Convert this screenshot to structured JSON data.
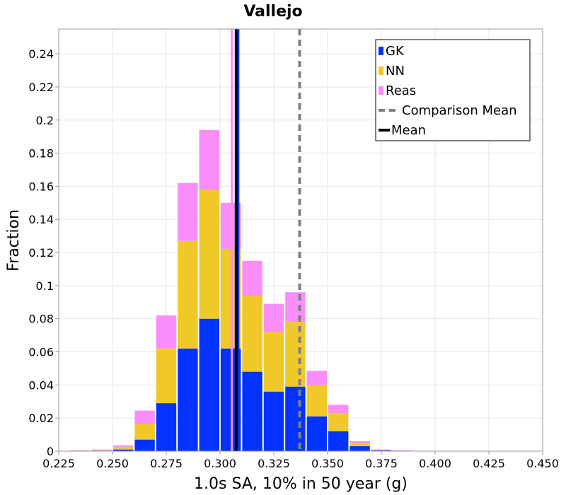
{
  "chart_data": {
    "type": "bar",
    "stacked": true,
    "title": "Vallejo",
    "xlabel": "1.0s SA, 10% in 50 year (g)",
    "ylabel": "Fraction",
    "xlim": [
      0.225,
      0.45
    ],
    "ylim": [
      0,
      0.255
    ],
    "grid": true,
    "legend_position": "top-right",
    "bin_width": 0.01,
    "x_ticks": [
      0.225,
      0.25,
      0.275,
      0.3,
      0.325,
      0.35,
      0.375,
      0.4,
      0.425,
      0.45
    ],
    "x_tick_labels": [
      "0.225",
      "0.250",
      "0.275",
      "0.300",
      "0.325",
      "0.350",
      "0.375",
      "0.400",
      "0.425",
      "0.450"
    ],
    "y_ticks": [
      0,
      0.02,
      0.04,
      0.06,
      0.08,
      0.1,
      0.12,
      0.14,
      0.16,
      0.18,
      0.2,
      0.22,
      0.24
    ],
    "y_tick_labels": [
      "0",
      "0.02",
      "0.04",
      "0.06",
      "0.08",
      "0.1",
      "0.12",
      "0.14",
      "0.16",
      "0.18",
      "0.2",
      "0.22",
      "0.24"
    ],
    "categories": [
      0.235,
      0.245,
      0.255,
      0.265,
      0.275,
      0.285,
      0.295,
      0.305,
      0.315,
      0.325,
      0.335,
      0.345,
      0.355,
      0.365,
      0.375,
      0.385
    ],
    "series": [
      {
        "name": "GK",
        "color": "#0433ff",
        "values": [
          0,
          0,
          0.001,
          0.007,
          0.029,
          0.062,
          0.08,
          0.062,
          0.048,
          0.036,
          0.039,
          0.021,
          0.012,
          0.003,
          0.0005,
          0
        ]
      },
      {
        "name": "NN",
        "color": "#f0c828",
        "values": [
          0,
          0.0005,
          0.0015,
          0.0095,
          0.033,
          0.065,
          0.078,
          0.06,
          0.046,
          0.036,
          0.039,
          0.019,
          0.011,
          0.002,
          0,
          0
        ]
      },
      {
        "name": "Reas",
        "color": "#f98df9",
        "values": [
          0.0005,
          0.0005,
          0.001,
          0.008,
          0.02,
          0.035,
          0.036,
          0.028,
          0.021,
          0.017,
          0.018,
          0.0085,
          0.005,
          0.001,
          0.0005,
          0.0005
        ]
      }
    ],
    "lines": [
      {
        "name": "Comparison Mean",
        "x": 0.337,
        "color": "#808080",
        "style": "dashed"
      },
      {
        "name": "Mean",
        "x": 0.3075,
        "color": "#000000",
        "style": "solid"
      }
    ],
    "series_mean_lines": [
      {
        "series": "Reas",
        "x": 0.3055,
        "color": "#f98df9"
      },
      {
        "series": "GK",
        "x": 0.3085,
        "color": "#0433ff"
      }
    ],
    "legend": [
      {
        "label": "GK",
        "kind": "swatch",
        "color": "#0433ff"
      },
      {
        "label": "NN",
        "kind": "swatch",
        "color": "#f0c828"
      },
      {
        "label": "Reas",
        "kind": "swatch",
        "color": "#f98df9"
      },
      {
        "label": "Comparison Mean",
        "kind": "dashed",
        "color": "#808080"
      },
      {
        "label": "Mean",
        "kind": "line",
        "color": "#000000"
      }
    ]
  }
}
